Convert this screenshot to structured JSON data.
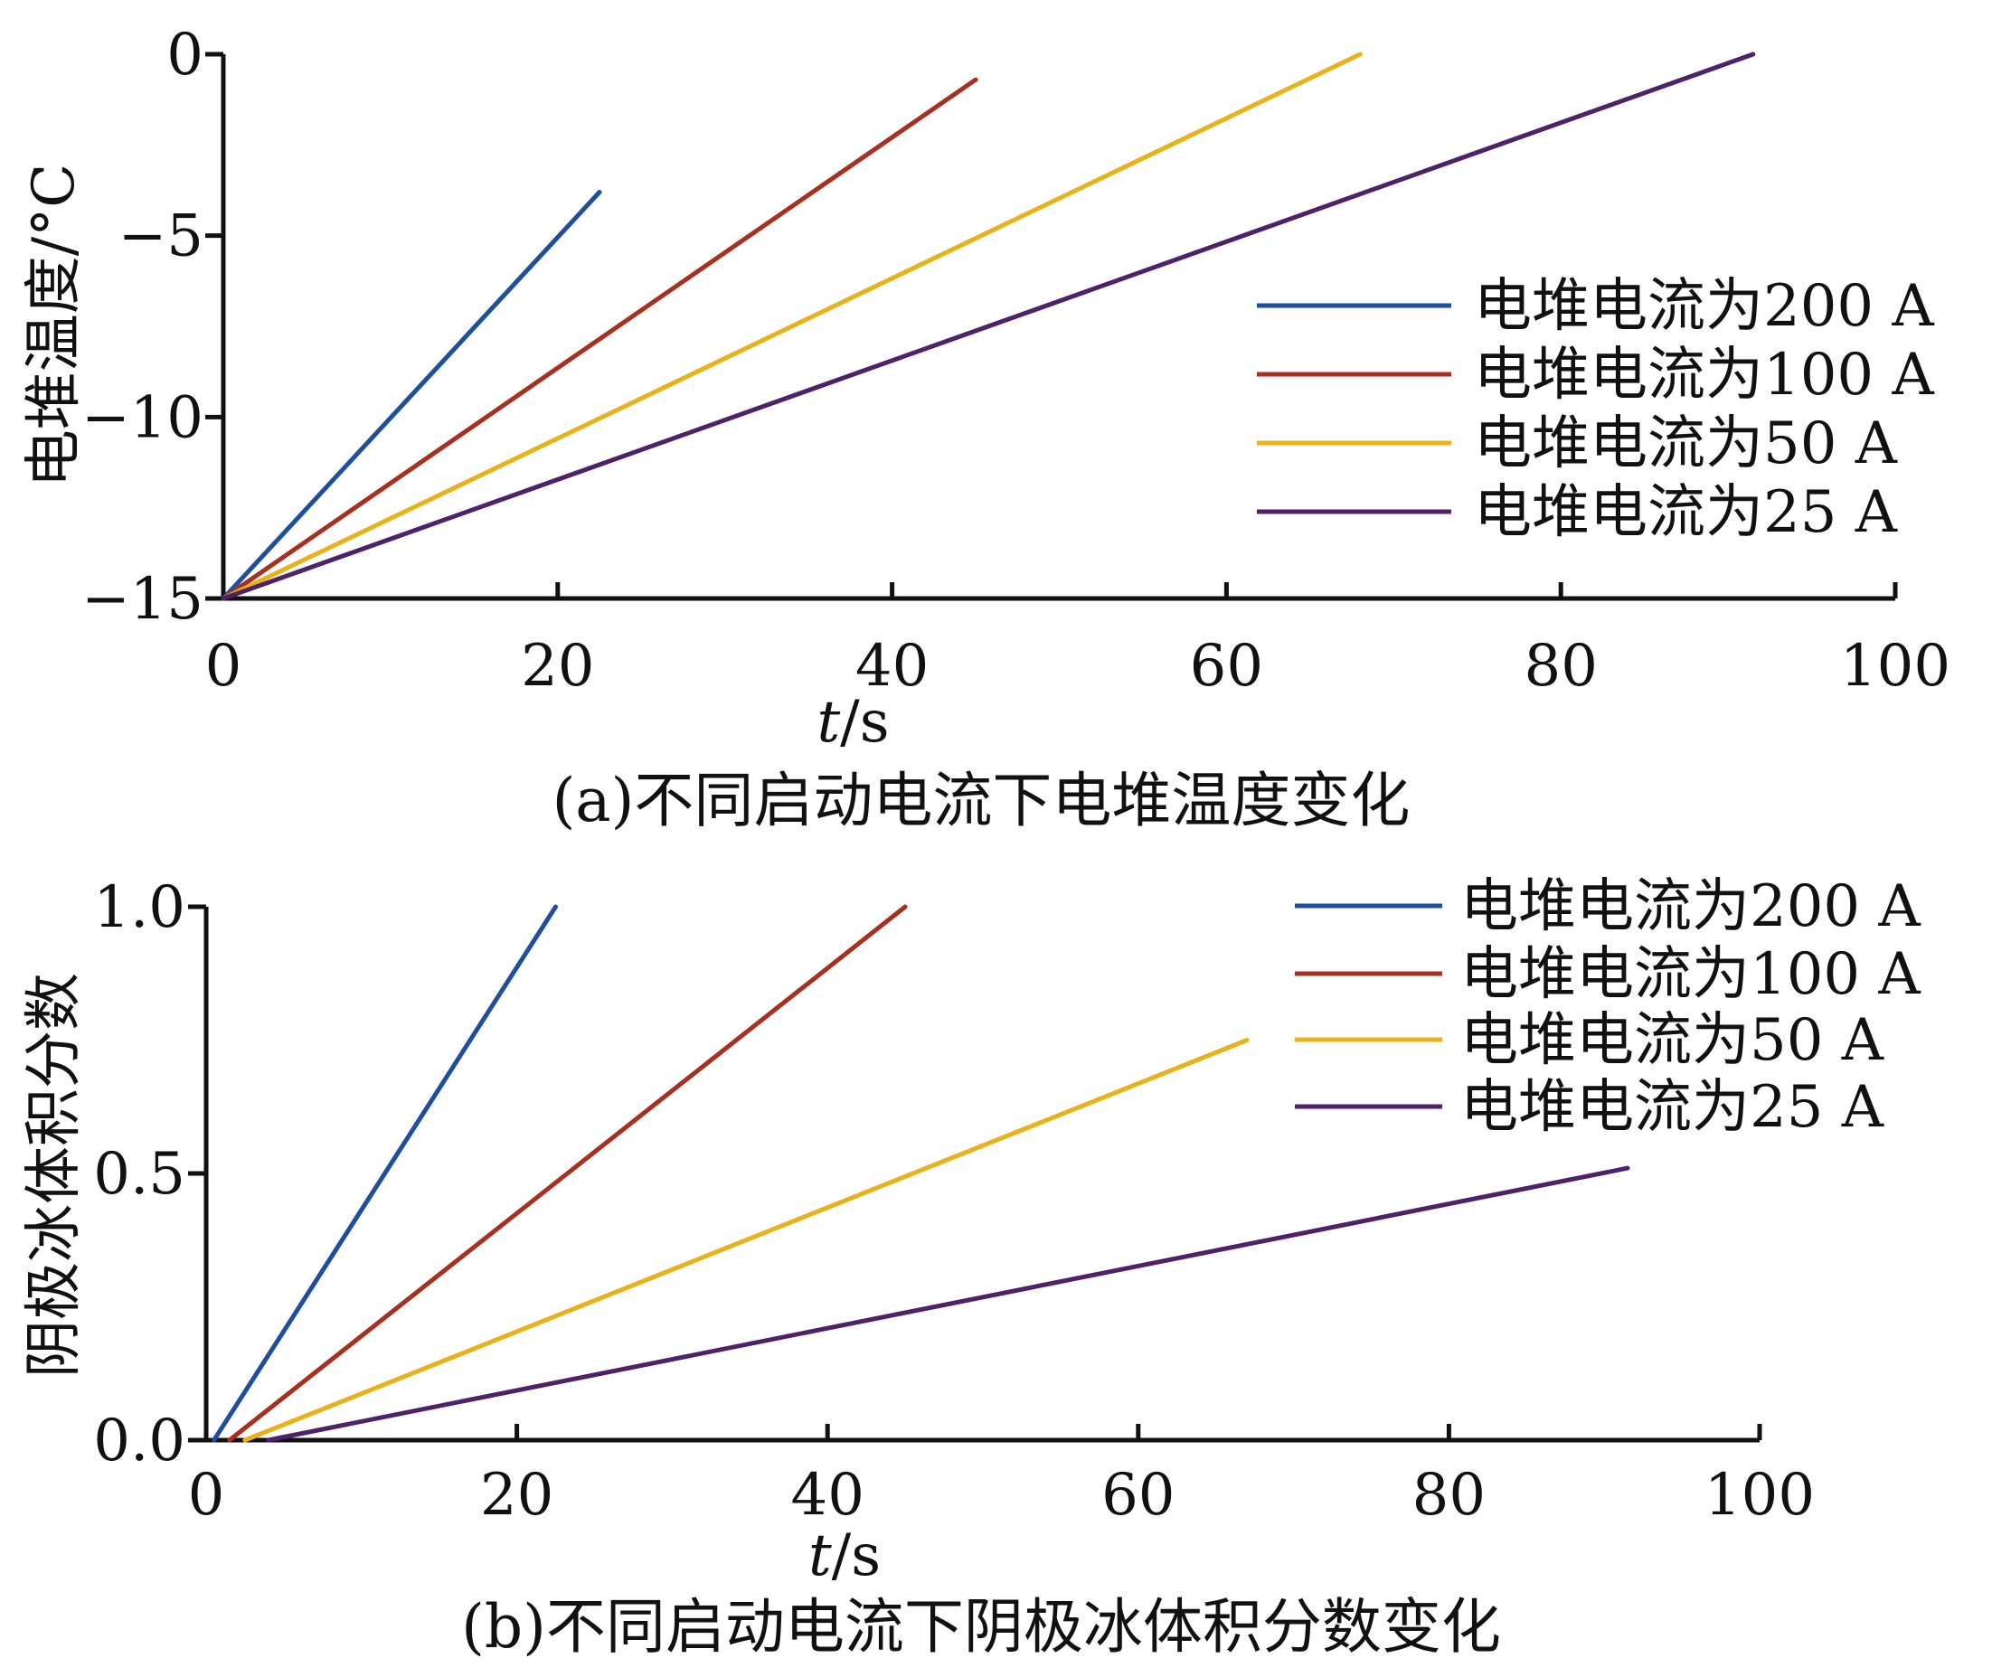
{
  "colors": {
    "blue": "#1f4e9c",
    "red": "#a83020",
    "yellow": "#e8b21a",
    "purple": "#4e2268",
    "axis": "#111111"
  },
  "chart_data": [
    {
      "type": "line",
      "caption": "(a)不同启动电流下电堆温度变化",
      "xlabel_italic": "t",
      "xlabel_unit": "/s",
      "ylabel": "电堆温度/°C",
      "xlim": [
        0,
        100
      ],
      "ylim": [
        -15,
        0
      ],
      "xticks": [
        "0",
        "20",
        "40",
        "60",
        "80",
        "100"
      ],
      "yticks": [
        "0",
        "−5",
        "−10",
        "−15"
      ],
      "legend_position": "center-right",
      "series": [
        {
          "name": "电堆电流为200 A",
          "color": "#1f4e9c",
          "x": [
            0,
            22.5
          ],
          "y": [
            -15,
            -3.8
          ]
        },
        {
          "name": "电堆电流为100 A",
          "color": "#a83020",
          "x": [
            0,
            45
          ],
          "y": [
            -15,
            -0.7
          ]
        },
        {
          "name": "电堆电流为50 A",
          "color": "#e8b21a",
          "x": [
            0,
            68
          ],
          "y": [
            -15,
            0
          ]
        },
        {
          "name": "电堆电流为25 A",
          "color": "#4e2268",
          "x": [
            0,
            91.5
          ],
          "y": [
            -15,
            0
          ]
        }
      ]
    },
    {
      "type": "line",
      "caption": "(b)不同启动电流下阴极冰体积分数变化",
      "xlabel_italic": "t",
      "xlabel_unit": "/s",
      "ylabel": "阴极冰体积分数",
      "xlim": [
        0,
        100
      ],
      "ylim": [
        0,
        1
      ],
      "xticks": [
        "0",
        "20",
        "40",
        "60",
        "80",
        "100"
      ],
      "yticks": [
        "1.0",
        "0.5",
        "0.0"
      ],
      "legend_position": "top-right",
      "series": [
        {
          "name": "电堆电流为200 A",
          "color": "#1f4e9c",
          "x": [
            0.5,
            22.5
          ],
          "y": [
            0,
            1.0
          ]
        },
        {
          "name": "电堆电流为100 A",
          "color": "#a83020",
          "x": [
            1.5,
            45
          ],
          "y": [
            0,
            1.0
          ]
        },
        {
          "name": "电堆电流为50 A",
          "color": "#e8b21a",
          "x": [
            2.5,
            67
          ],
          "y": [
            0,
            0.75
          ]
        },
        {
          "name": "电堆电流为25 A",
          "color": "#4e2268",
          "x": [
            4,
            91.5
          ],
          "y": [
            0,
            0.51
          ]
        }
      ]
    }
  ]
}
